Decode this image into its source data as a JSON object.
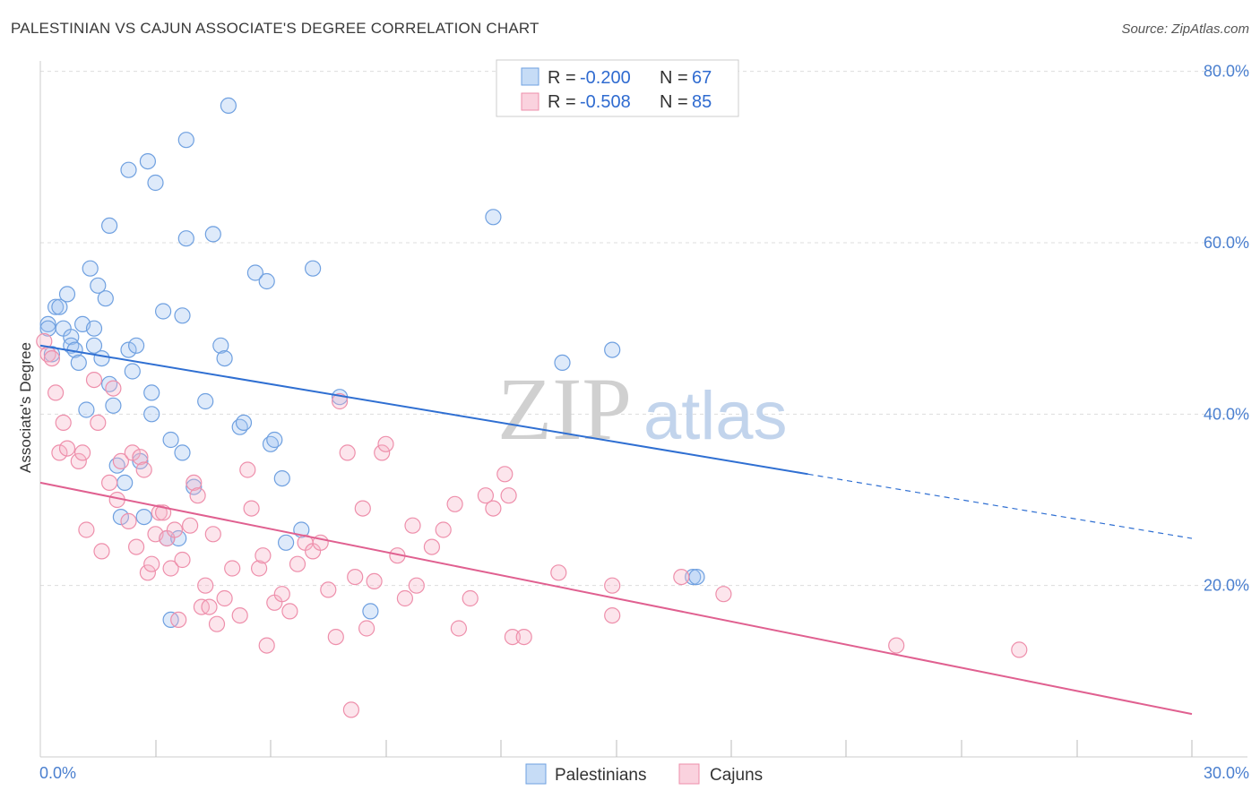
{
  "title": "PALESTINIAN VS CAJUN ASSOCIATE'S DEGREE CORRELATION CHART",
  "source": "Source: ZipAtlas.com",
  "colors": {
    "blue": "#6fa0e0",
    "blue_fill": "rgba(160,196,240,0.35)",
    "blue_line": "#2f6fd2",
    "pink": "#ee8fab",
    "pink_fill": "rgba(246,180,200,0.35)",
    "pink_line": "#e06090",
    "grid": "#dddddd",
    "tick_text": "#4a7fcf"
  },
  "legend": {
    "r_label": "R =",
    "n_label": "N =",
    "rows": [
      {
        "series": "Palestinians",
        "r": "-0.200",
        "n": "67"
      },
      {
        "series": "Cajuns",
        "r": "-0.508",
        "n": "85"
      }
    ]
  },
  "watermark": {
    "zip": "ZIP",
    "atlas": "atlas"
  },
  "chart_data": {
    "type": "scatter",
    "title": "PALESTINIAN VS CAJUN ASSOCIATE'S DEGREE CORRELATION CHART",
    "xlabel": "",
    "ylabel": "Associate's Degree",
    "xlim": [
      0,
      30
    ],
    "ylim": [
      0,
      83
    ],
    "x_tick_labels": [
      "0.0%",
      "30.0%"
    ],
    "x_minor_ticks": [
      3,
      6,
      9,
      12,
      15,
      18,
      21,
      24,
      27,
      30
    ],
    "y_ticks": [
      20,
      40,
      60,
      80
    ],
    "y_tick_labels": [
      "20.0%",
      "40.0%",
      "60.0%",
      "80.0%"
    ],
    "legend_position": "bottom-center",
    "series": [
      {
        "name": "Palestinians",
        "r": -0.2,
        "n": 67,
        "trend": {
          "x0": 0,
          "y0": 48.0,
          "x1": 20.0,
          "y1": 33.0,
          "dash_to_x": 30,
          "dash_to_y": 25.5
        },
        "points": [
          [
            0.2,
            50.5
          ],
          [
            0.2,
            50.0
          ],
          [
            0.3,
            47.0
          ],
          [
            0.4,
            52.5
          ],
          [
            0.5,
            52.5
          ],
          [
            0.6,
            50.0
          ],
          [
            0.7,
            54.0
          ],
          [
            0.8,
            49.0
          ],
          [
            0.8,
            48.0
          ],
          [
            0.9,
            47.5
          ],
          [
            1.0,
            46.0
          ],
          [
            1.1,
            50.5
          ],
          [
            1.2,
            40.5
          ],
          [
            1.3,
            57.0
          ],
          [
            1.4,
            50.0
          ],
          [
            1.4,
            48.0
          ],
          [
            1.5,
            55.0
          ],
          [
            1.6,
            46.5
          ],
          [
            1.7,
            53.5
          ],
          [
            1.8,
            62.0
          ],
          [
            1.8,
            43.5
          ],
          [
            1.9,
            41.0
          ],
          [
            2.0,
            34.0
          ],
          [
            2.1,
            28.0
          ],
          [
            2.2,
            32.0
          ],
          [
            2.3,
            68.5
          ],
          [
            2.3,
            47.5
          ],
          [
            2.4,
            45.0
          ],
          [
            2.5,
            48.0
          ],
          [
            2.6,
            34.5
          ],
          [
            2.7,
            28.0
          ],
          [
            2.8,
            69.5
          ],
          [
            2.9,
            42.5
          ],
          [
            2.9,
            40.0
          ],
          [
            3.0,
            67.0
          ],
          [
            3.2,
            52.0
          ],
          [
            3.3,
            25.5
          ],
          [
            3.4,
            37.0
          ],
          [
            3.4,
            16.0
          ],
          [
            3.6,
            25.5
          ],
          [
            3.7,
            51.5
          ],
          [
            3.7,
            35.5
          ],
          [
            3.8,
            60.5
          ],
          [
            3.8,
            72.0
          ],
          [
            4.0,
            31.5
          ],
          [
            4.3,
            41.5
          ],
          [
            4.5,
            61.0
          ],
          [
            4.7,
            48.0
          ],
          [
            4.8,
            46.5
          ],
          [
            4.9,
            76.0
          ],
          [
            5.2,
            38.5
          ],
          [
            5.3,
            39.0
          ],
          [
            5.6,
            56.5
          ],
          [
            5.9,
            55.5
          ],
          [
            6.0,
            36.5
          ],
          [
            6.1,
            37.0
          ],
          [
            6.3,
            32.5
          ],
          [
            6.4,
            25.0
          ],
          [
            6.8,
            26.5
          ],
          [
            7.1,
            57.0
          ],
          [
            7.8,
            42.0
          ],
          [
            8.6,
            17.0
          ],
          [
            11.8,
            63.0
          ],
          [
            13.6,
            46.0
          ],
          [
            14.9,
            47.5
          ],
          [
            17.0,
            21.0
          ],
          [
            17.1,
            21.0
          ]
        ]
      },
      {
        "name": "Cajuns",
        "r": -0.508,
        "n": 85,
        "trend": {
          "x0": 0,
          "y0": 32.0,
          "x1": 30,
          "y1": 5.0
        },
        "points": [
          [
            0.1,
            48.5
          ],
          [
            0.2,
            47.0
          ],
          [
            0.3,
            46.5
          ],
          [
            0.4,
            42.5
          ],
          [
            0.5,
            35.5
          ],
          [
            0.6,
            39.0
          ],
          [
            0.7,
            36.0
          ],
          [
            1.0,
            34.5
          ],
          [
            1.1,
            35.5
          ],
          [
            1.2,
            26.5
          ],
          [
            1.4,
            44.0
          ],
          [
            1.5,
            39.0
          ],
          [
            1.6,
            24.0
          ],
          [
            1.8,
            32.0
          ],
          [
            1.9,
            43.0
          ],
          [
            2.0,
            30.0
          ],
          [
            2.1,
            34.5
          ],
          [
            2.3,
            27.5
          ],
          [
            2.4,
            35.5
          ],
          [
            2.5,
            24.5
          ],
          [
            2.6,
            35.0
          ],
          [
            2.7,
            33.5
          ],
          [
            2.8,
            21.5
          ],
          [
            2.9,
            22.5
          ],
          [
            3.0,
            26.0
          ],
          [
            3.1,
            28.5
          ],
          [
            3.2,
            28.5
          ],
          [
            3.3,
            25.5
          ],
          [
            3.4,
            22.0
          ],
          [
            3.5,
            26.5
          ],
          [
            3.6,
            16.0
          ],
          [
            3.7,
            23.0
          ],
          [
            3.9,
            27.0
          ],
          [
            4.0,
            32.0
          ],
          [
            4.1,
            30.5
          ],
          [
            4.2,
            17.5
          ],
          [
            4.3,
            20.0
          ],
          [
            4.4,
            17.5
          ],
          [
            4.5,
            26.0
          ],
          [
            4.6,
            15.5
          ],
          [
            4.8,
            18.5
          ],
          [
            5.0,
            22.0
          ],
          [
            5.2,
            16.5
          ],
          [
            5.4,
            33.5
          ],
          [
            5.5,
            29.0
          ],
          [
            5.7,
            22.0
          ],
          [
            5.8,
            23.5
          ],
          [
            5.9,
            13.0
          ],
          [
            6.1,
            18.0
          ],
          [
            6.3,
            19.0
          ],
          [
            6.5,
            17.0
          ],
          [
            6.7,
            22.5
          ],
          [
            6.9,
            25.0
          ],
          [
            7.1,
            24.0
          ],
          [
            7.3,
            25.0
          ],
          [
            7.5,
            19.5
          ],
          [
            7.7,
            14.0
          ],
          [
            7.8,
            41.5
          ],
          [
            8.0,
            35.5
          ],
          [
            8.1,
            5.5
          ],
          [
            8.2,
            21.0
          ],
          [
            8.4,
            29.0
          ],
          [
            8.5,
            15.0
          ],
          [
            8.7,
            20.5
          ],
          [
            8.9,
            35.5
          ],
          [
            9.0,
            36.5
          ],
          [
            9.3,
            23.5
          ],
          [
            9.5,
            18.5
          ],
          [
            9.7,
            27.0
          ],
          [
            9.8,
            20.0
          ],
          [
            10.2,
            24.5
          ],
          [
            10.5,
            26.5
          ],
          [
            10.8,
            29.5
          ],
          [
            10.9,
            15.0
          ],
          [
            11.2,
            18.5
          ],
          [
            11.6,
            30.5
          ],
          [
            11.8,
            29.0
          ],
          [
            12.1,
            33.0
          ],
          [
            12.2,
            30.5
          ],
          [
            12.3,
            14.0
          ],
          [
            12.6,
            14.0
          ],
          [
            13.5,
            21.5
          ],
          [
            14.9,
            20.0
          ],
          [
            14.9,
            16.5
          ],
          [
            16.7,
            21.0
          ]
        ],
        "extra_points": [
          [
            17.8,
            19.0
          ],
          [
            22.3,
            13.0
          ],
          [
            25.5,
            12.5
          ]
        ]
      }
    ]
  },
  "bottom_legend": {
    "items": [
      "Palestinians",
      "Cajuns"
    ]
  }
}
